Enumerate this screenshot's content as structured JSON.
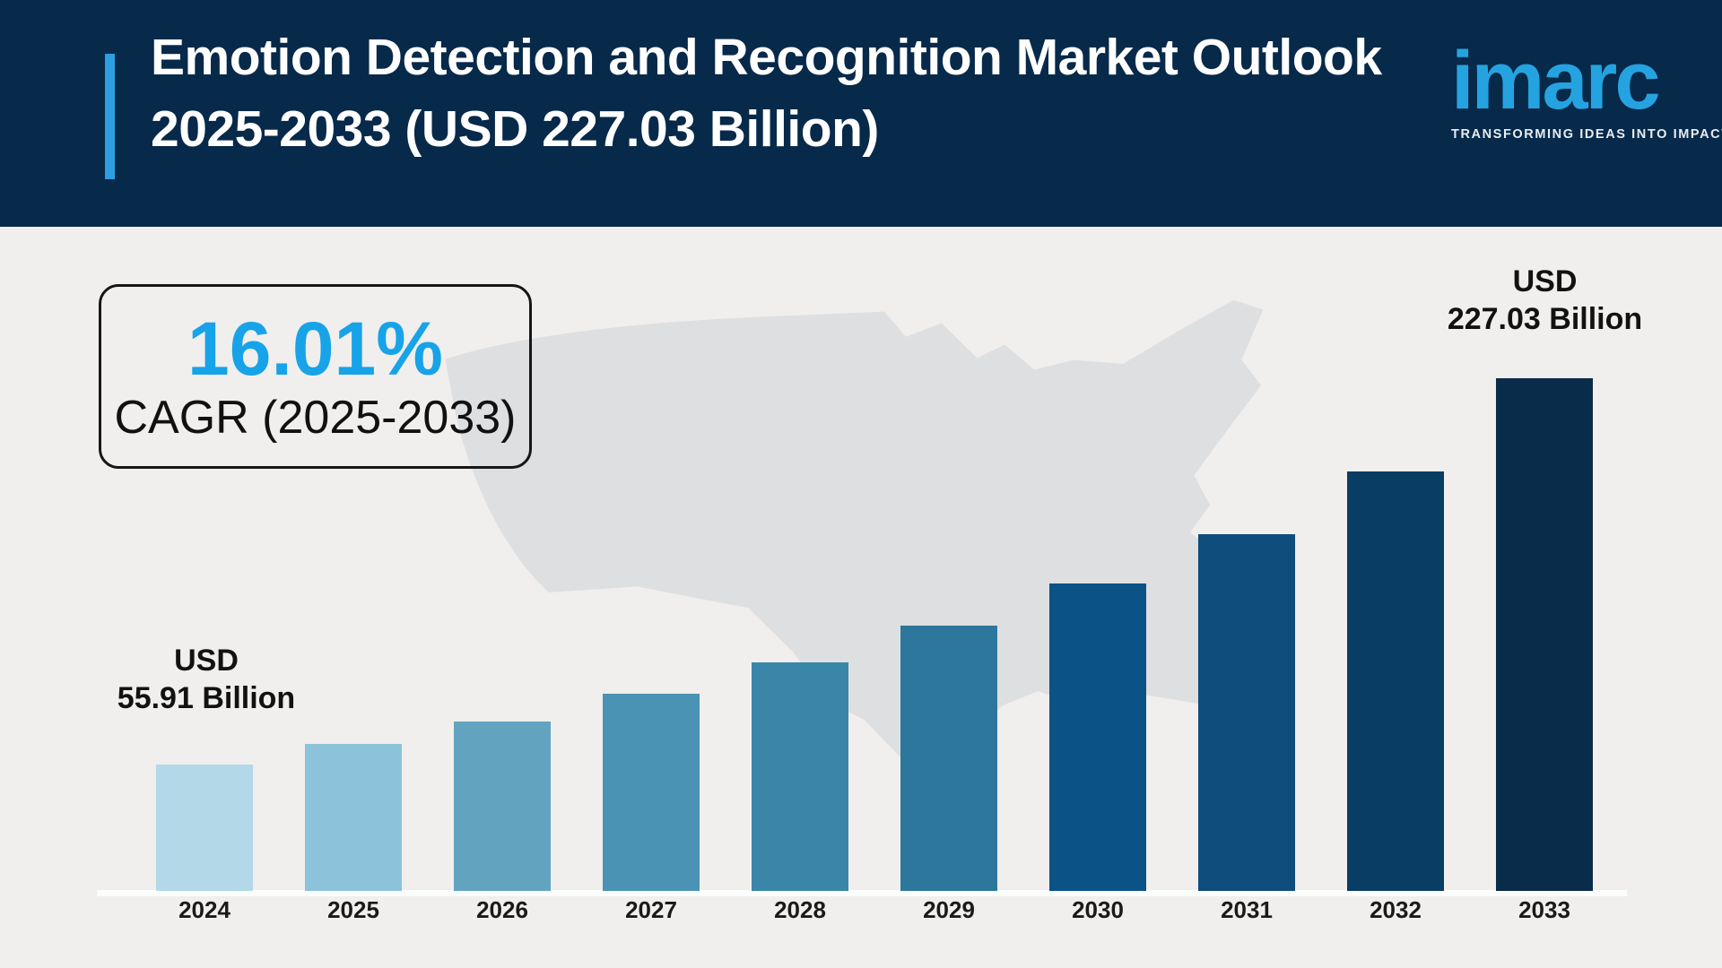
{
  "header": {
    "title_line1": "Emotion Detection and Recognition Market Outlook",
    "title_line2": "2025-2033 (USD 227.03 Billion)",
    "bg_color": "#07294a",
    "accent_color": "#2d9fe0"
  },
  "logo": {
    "wordmark": "imarc",
    "tagline": "TRANSFORMING IDEAS INTO IMPACT",
    "wordmark_color": "#25a3e0"
  },
  "cagr_box": {
    "percent": "16.01%",
    "label": "CAGR (2025-2033)",
    "percent_color": "#17a3e8"
  },
  "annotations": {
    "first_bar": {
      "line1": "USD",
      "line2": "55.91 Billion"
    },
    "last_bar": {
      "line1": "USD",
      "line2": "227.03 Billion"
    }
  },
  "colors": {
    "page_background": "#f0efed",
    "map_silhouette": "#dedfe1",
    "baseline_strip": "#fbfcfc",
    "label_text": "#121212"
  },
  "chart_data": {
    "type": "bar",
    "title": "Emotion Detection and Recognition Market Outlook 2025-2033 (USD 227.03 Billion)",
    "unit": "USD Billion",
    "categories": [
      "2024",
      "2025",
      "2026",
      "2027",
      "2028",
      "2029",
      "2030",
      "2031",
      "2032",
      "2033"
    ],
    "values": [
      55.91,
      64.9,
      75.2,
      87.2,
      101.2,
      117.4,
      136.2,
      158.1,
      185.8,
      227.03
    ],
    "labeled_values": {
      "2024": "USD 55.91 Billion",
      "2033": "USD 227.03 Billion"
    },
    "cagr": "16.01% CAGR (2025-2033)",
    "bar_colors": [
      "#b3d8e8",
      "#8cc3da",
      "#62a4c0",
      "#4b93b4",
      "#3a86a9",
      "#2e779c",
      "#0b5287",
      "#0e4d7c",
      "#0a3d63",
      "#082c49"
    ],
    "xlabel": "",
    "ylabel": "",
    "ylim": [
      0,
      240
    ],
    "grid": false,
    "legend": false
  }
}
